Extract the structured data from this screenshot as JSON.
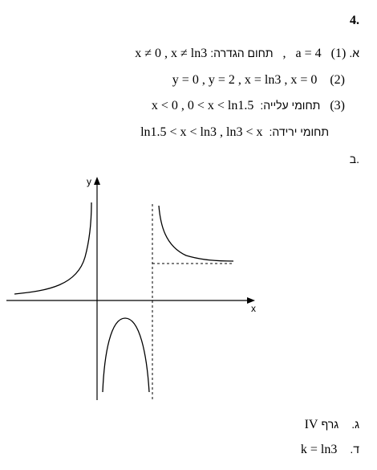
{
  "question_number": "4.",
  "part_a": {
    "letter": "א.",
    "item1": {
      "num": "(1)",
      "a_value": "a = 4",
      "sep": ",",
      "domain_label": "תחום הגדרה:",
      "domain_value": "x ≠ 0 , x ≠ ln3"
    },
    "item2": {
      "num": "(2)",
      "value": "y = 0 , y = 2 , x = ln3 , x = 0"
    },
    "item3": {
      "num": "(3)",
      "label": "תחומי עלייה:",
      "value": "x < 0 , 0 < x < ln1.5"
    },
    "item3b": {
      "label": "תחומי ירידה:",
      "value": "ln1.5 < x < ln3 , ln3 < x"
    }
  },
  "part_b": {
    "letter": "ב.",
    "graph": {
      "y_axis_label": "y",
      "x_axis_label": "x"
    }
  },
  "part_c": {
    "letter": "ג.",
    "label": "גרף",
    "value": "IV"
  },
  "part_d": {
    "letter": "ד.",
    "value": "k = ln3"
  }
}
